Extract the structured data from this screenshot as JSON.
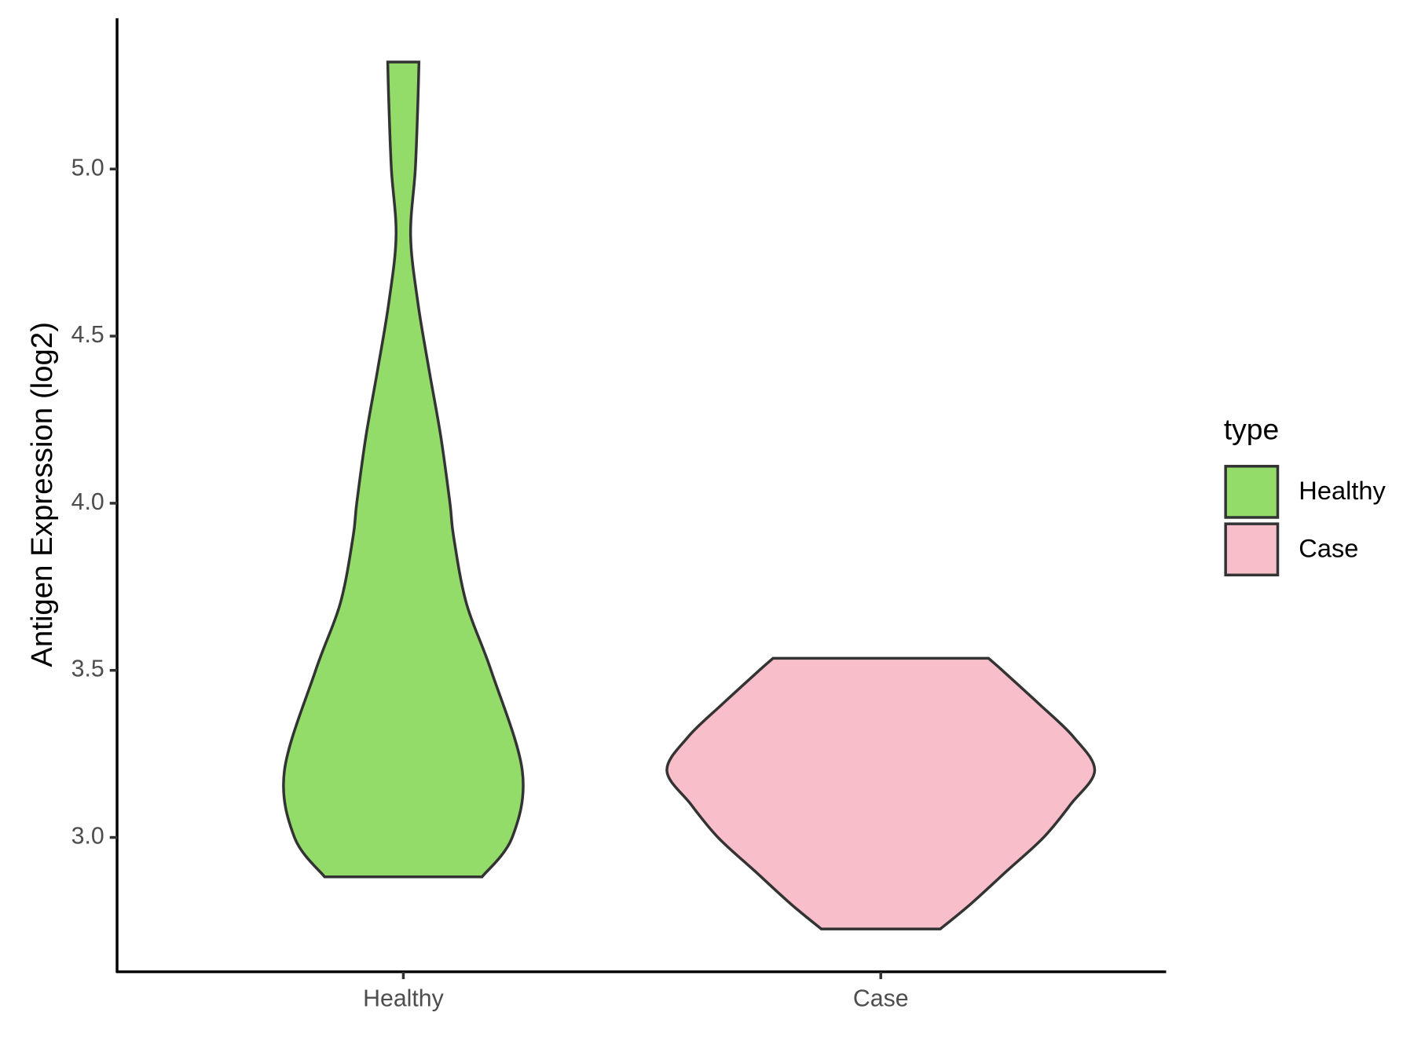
{
  "chart_data": {
    "type": "violin",
    "y_label": "Antigen Expression (log2)",
    "categories": [
      "Healthy",
      "Case"
    ],
    "ylim": [
      2.598,
      5.451
    ],
    "yticks": [
      {
        "value": 3,
        "label": "3.0"
      },
      {
        "value": 3.5,
        "label": "3.5"
      },
      {
        "value": 4,
        "label": "4.0"
      },
      {
        "value": 4.5,
        "label": "4.5"
      },
      {
        "value": 5,
        "label": "5.0"
      }
    ],
    "legend_title": "type",
    "legend_position": "right",
    "series": [
      {
        "name": "Healthy",
        "color": "#93dc6a",
        "y": [
          2.882,
          3.0,
          3.2,
          3.5,
          3.7,
          3.9,
          4.0,
          4.2,
          4.4,
          4.6,
          4.8,
          5.0,
          5.2,
          5.32
        ],
        "density": [
          0.368,
          0.509,
          0.556,
          0.41,
          0.295,
          0.235,
          0.218,
          0.175,
          0.12,
          0.068,
          0.034,
          0.056,
          0.068,
          0.073
        ]
      },
      {
        "name": "Case",
        "color": "#f8bfca",
        "y": [
          2.726,
          2.8,
          2.9,
          3.0,
          3.1,
          3.2,
          3.3,
          3.4,
          3.5,
          3.536
        ],
        "density": [
          0.278,
          0.419,
          0.59,
          0.761,
          0.889,
          1,
          0.902,
          0.739,
          0.568,
          0.504
        ]
      }
    ]
  }
}
